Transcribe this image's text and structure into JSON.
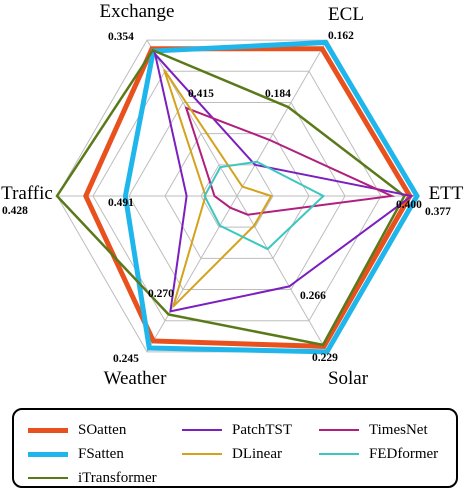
{
  "chart_data": {
    "type": "radar",
    "axes": [
      "ECL",
      "ETT",
      "Solar",
      "Weather",
      "Traffic",
      "Exchange"
    ],
    "axis_value_labels": {
      "ECL": [
        "0.162",
        "0.184"
      ],
      "ETT": [
        "0.377",
        "0.400"
      ],
      "Solar": [
        "0.229",
        "0.266"
      ],
      "Weather": [
        "0.245",
        "0.270"
      ],
      "Traffic": [
        "0.428",
        "0.491"
      ],
      "Exchange": [
        "0.354",
        "0.415"
      ]
    },
    "series": [
      {
        "name": "SOatten",
        "color": "#e8501e",
        "values": [
          0.945,
          0.96,
          0.965,
          0.93,
          0.84,
          0.945
        ]
      },
      {
        "name": "FSatten",
        "color": "#1fb6ec",
        "values": [
          0.985,
          1.0,
          1.0,
          0.975,
          0.62,
          0.93
        ]
      },
      {
        "name": "iTransformer",
        "color": "#5a7a1a",
        "values": [
          0.57,
          0.93,
          0.955,
          0.76,
          1.0,
          0.935
        ]
      },
      {
        "name": "PatchTST",
        "color": "#7b1fbf",
        "values": [
          0.2,
          0.97,
          0.58,
          0.74,
          0.28,
          0.91
        ]
      },
      {
        "name": "TimesNet",
        "color": "#b01f7e",
        "values": [
          0.36,
          0.86,
          0.12,
          0.075,
          0.125,
          0.565
        ]
      },
      {
        "name": "DLinear",
        "color": "#d4a21c",
        "values": [
          0.06,
          0.19,
          0.19,
          0.71,
          0.175,
          0.81
        ]
      },
      {
        "name": "FEDformer",
        "color": "#3cc7c0",
        "values": [
          0.22,
          0.48,
          0.34,
          0.19,
          0.18,
          0.185
        ]
      }
    ],
    "rings": 5,
    "grid": true,
    "legend_position": "bottom"
  }
}
